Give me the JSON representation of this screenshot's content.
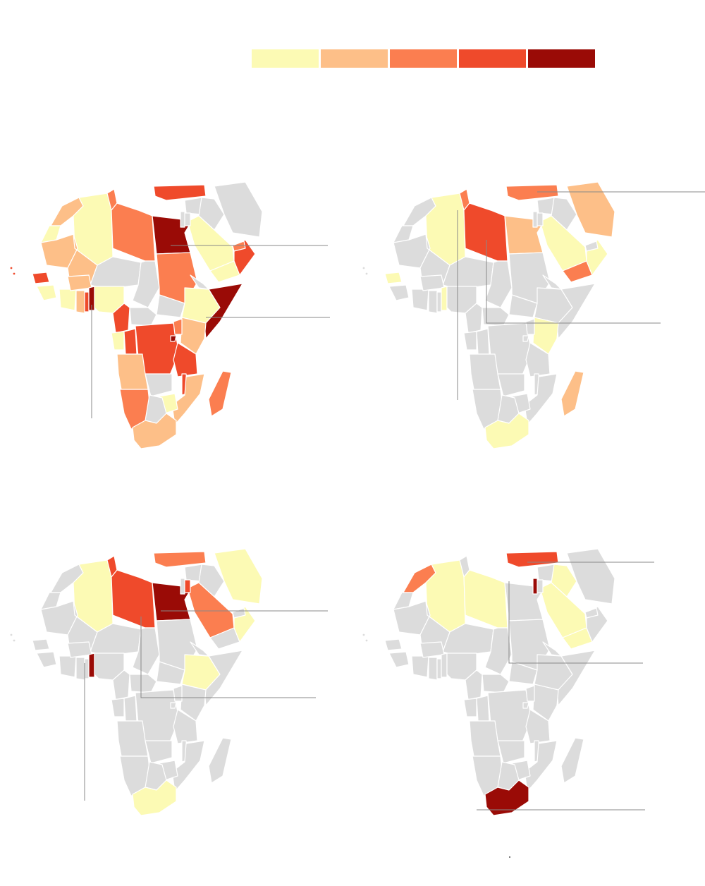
{
  "legend": {
    "colors": [
      "#fcfab4",
      "#fdbf88",
      "#fb7e50",
      "#ef4a2b",
      "#9a0b06"
    ]
  },
  "colors": {
    "nodata": "#dcdcdc",
    "border": "#ffffff",
    "leader": "#888888"
  },
  "maps": [
    {
      "id": "map-1",
      "regions": [
        {
          "name": "morocco",
          "level": 2
        },
        {
          "name": "western-sahara",
          "level": 1
        },
        {
          "name": "algeria",
          "level": 1
        },
        {
          "name": "tunisia",
          "level": 3
        },
        {
          "name": "libya",
          "level": 3
        },
        {
          "name": "egypt",
          "level": 5
        },
        {
          "name": "mauritania",
          "level": 2
        },
        {
          "name": "mali",
          "level": 2
        },
        {
          "name": "niger",
          "level": 0
        },
        {
          "name": "chad",
          "level": 0
        },
        {
          "name": "sudan",
          "level": 3
        },
        {
          "name": "south-sudan",
          "level": 0
        },
        {
          "name": "ethiopia",
          "level": 1
        },
        {
          "name": "eritrea",
          "level": 0
        },
        {
          "name": "somalia",
          "level": 5
        },
        {
          "name": "kenya",
          "level": 2
        },
        {
          "name": "senegal",
          "level": 4
        },
        {
          "name": "guinea",
          "level": 1
        },
        {
          "name": "ivory-coast",
          "level": 1
        },
        {
          "name": "burkina-faso",
          "level": 2
        },
        {
          "name": "ghana",
          "level": 2
        },
        {
          "name": "togo",
          "level": 4
        },
        {
          "name": "benin",
          "level": 5
        },
        {
          "name": "nigeria",
          "level": 1
        },
        {
          "name": "cameroon",
          "level": 4
        },
        {
          "name": "car",
          "level": 0
        },
        {
          "name": "gabon",
          "level": 1
        },
        {
          "name": "congo",
          "level": 4
        },
        {
          "name": "drc",
          "level": 4
        },
        {
          "name": "uganda",
          "level": 3
        },
        {
          "name": "rwanda",
          "level": 5
        },
        {
          "name": "tanzania",
          "level": 4
        },
        {
          "name": "angola",
          "level": 2
        },
        {
          "name": "zambia",
          "level": 0
        },
        {
          "name": "malawi",
          "level": 4
        },
        {
          "name": "mozambique",
          "level": 2
        },
        {
          "name": "zimbabwe",
          "level": 1
        },
        {
          "name": "namibia",
          "level": 3
        },
        {
          "name": "botswana",
          "level": 0
        },
        {
          "name": "south-africa",
          "level": 2
        },
        {
          "name": "madagascar",
          "level": 3
        },
        {
          "name": "turkey",
          "level": 4
        },
        {
          "name": "syria",
          "level": 0
        },
        {
          "name": "iraq",
          "level": 0
        },
        {
          "name": "iran",
          "level": 0
        },
        {
          "name": "saudi-arabia",
          "level": 1
        },
        {
          "name": "yemen",
          "level": 1
        },
        {
          "name": "oman",
          "level": 4
        },
        {
          "name": "uae",
          "level": 3
        }
      ]
    },
    {
      "id": "map-2",
      "regions": [
        {
          "name": "morocco",
          "level": 0
        },
        {
          "name": "algeria",
          "level": 1
        },
        {
          "name": "tunisia",
          "level": 3
        },
        {
          "name": "libya",
          "level": 4
        },
        {
          "name": "egypt",
          "level": 2
        },
        {
          "name": "senegal",
          "level": 1
        },
        {
          "name": "benin",
          "level": 1
        },
        {
          "name": "kenya",
          "level": 1
        },
        {
          "name": "madagascar",
          "level": 2
        },
        {
          "name": "south-africa",
          "level": 1
        },
        {
          "name": "turkey",
          "level": 3
        },
        {
          "name": "saudi-arabia",
          "level": 1
        },
        {
          "name": "iran",
          "level": 2
        },
        {
          "name": "yemen",
          "level": 3
        },
        {
          "name": "oman",
          "level": 1
        }
      ]
    },
    {
      "id": "map-3",
      "regions": [
        {
          "name": "algeria",
          "level": 1
        },
        {
          "name": "tunisia",
          "level": 4
        },
        {
          "name": "libya",
          "level": 4
        },
        {
          "name": "egypt",
          "level": 5
        },
        {
          "name": "benin",
          "level": 5
        },
        {
          "name": "ethiopia",
          "level": 1
        },
        {
          "name": "south-africa",
          "level": 1
        },
        {
          "name": "turkey",
          "level": 3
        },
        {
          "name": "iran",
          "level": 1
        },
        {
          "name": "saudi-arabia",
          "level": 3
        },
        {
          "name": "oman",
          "level": 1
        },
        {
          "name": "jordan",
          "level": 4
        }
      ]
    },
    {
      "id": "map-4",
      "regions": [
        {
          "name": "morocco",
          "level": 3
        },
        {
          "name": "algeria",
          "level": 1
        },
        {
          "name": "libya",
          "level": 1
        },
        {
          "name": "turkey",
          "level": 4
        },
        {
          "name": "saudi-arabia",
          "level": 1
        },
        {
          "name": "iraq",
          "level": 1
        },
        {
          "name": "yemen",
          "level": 1
        },
        {
          "name": "israel",
          "level": 5
        },
        {
          "name": "south-africa",
          "level": 5
        }
      ]
    }
  ]
}
